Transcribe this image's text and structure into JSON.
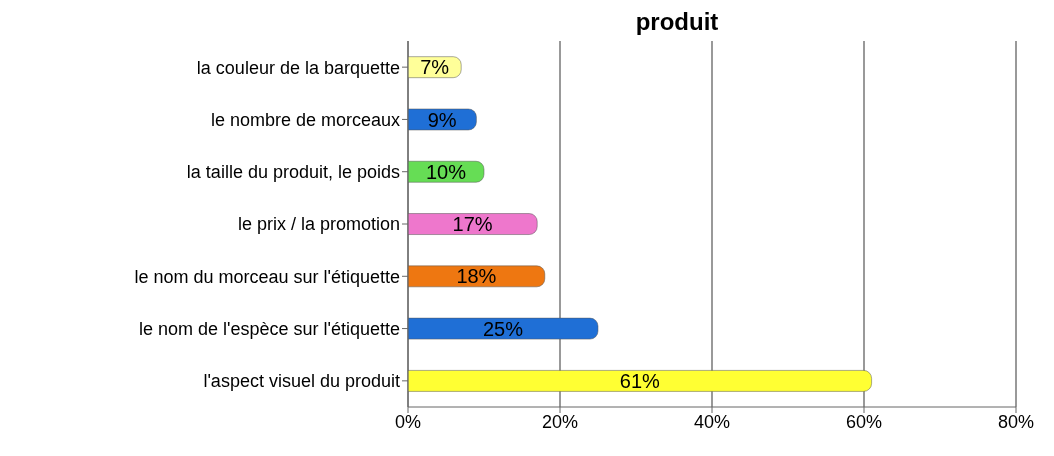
{
  "chart_data": {
    "type": "bar",
    "orientation": "horizontal",
    "title": "produit",
    "categories": [
      "la couleur de la barquette",
      "le nombre de morceaux",
      "la taille du produit, le poids",
      "le prix / la promotion",
      "le nom du morceau sur l'étiquette",
      "le nom de l'espèce sur l'étiquette",
      "l'aspect visuel du produit"
    ],
    "values": [
      7,
      9,
      10,
      17,
      18,
      25,
      61
    ],
    "value_labels": [
      "7%",
      "9%",
      "10%",
      "17%",
      "18%",
      "25%",
      "61%"
    ],
    "colors": [
      "#ffff99",
      "#1f6fd6",
      "#66dd55",
      "#ee77cc",
      "#ee7711",
      "#1f6fd6",
      "#ffff33"
    ],
    "xlim": [
      0,
      80
    ],
    "xticks": [
      {
        "value": 0,
        "label": "0%"
      },
      {
        "value": 20,
        "label": "20%"
      },
      {
        "value": 40,
        "label": "40%"
      },
      {
        "value": 60,
        "label": "60%"
      },
      {
        "value": 80,
        "label": "80%"
      }
    ],
    "grid": "x"
  }
}
